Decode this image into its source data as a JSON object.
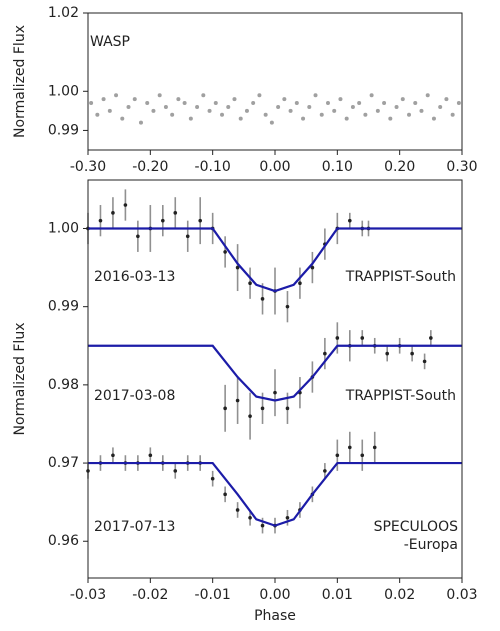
{
  "chart_data": [
    {
      "type": "scatter",
      "ylabel": "Normalized Flux",
      "annotations": [
        "WASP"
      ],
      "xlim": [
        -0.3,
        0.3
      ],
      "ylim": [
        0.985,
        1.02
      ],
      "xticks": [
        {
          "value": -0.3,
          "label": "-0.30"
        },
        {
          "value": -0.2,
          "label": "-0.20"
        },
        {
          "value": -0.1,
          "label": "-0.10"
        },
        {
          "value": 0,
          "label": "0.00"
        },
        {
          "value": 0.1,
          "label": "0.10"
        },
        {
          "value": 0.2,
          "label": "0.20"
        },
        {
          "value": 0.3,
          "label": "0.30"
        }
      ],
      "yticks": [
        0.99,
        {
          "value": 1,
          "label": "1.00"
        },
        1.02
      ],
      "series": [
        {
          "type": "markers",
          "color": "#a0a0a0",
          "x": [
            -0.295,
            -0.285,
            -0.275,
            -0.265,
            -0.255,
            -0.245,
            -0.235,
            -0.225,
            -0.215,
            -0.205,
            -0.195,
            -0.185,
            -0.175,
            -0.165,
            -0.155,
            -0.145,
            -0.135,
            -0.125,
            -0.115,
            -0.105,
            -0.095,
            -0.085,
            -0.075,
            -0.065,
            -0.055,
            -0.045,
            -0.035,
            -0.025,
            -0.015,
            -0.005,
            0.005,
            0.015,
            0.025,
            0.035,
            0.045,
            0.055,
            0.065,
            0.075,
            0.085,
            0.095,
            0.105,
            0.115,
            0.125,
            0.135,
            0.145,
            0.155,
            0.165,
            0.175,
            0.185,
            0.195,
            0.205,
            0.215,
            0.225,
            0.235,
            0.245,
            0.255,
            0.265,
            0.275,
            0.285,
            0.295
          ],
          "values": [
            0.997,
            0.994,
            0.998,
            0.995,
            0.999,
            0.993,
            0.996,
            0.998,
            0.992,
            0.997,
            0.995,
            0.999,
            0.996,
            0.994,
            0.998,
            0.997,
            0.993,
            0.996,
            0.999,
            0.995,
            0.997,
            0.994,
            0.996,
            0.998,
            0.993,
            0.995,
            0.997,
            0.999,
            0.994,
            0.992,
            0.996,
            0.998,
            0.995,
            0.997,
            0.993,
            0.996,
            0.999,
            0.994,
            0.997,
            0.995,
            0.998,
            0.993,
            0.996,
            0.997,
            0.994,
            0.999,
            0.995,
            0.997,
            0.993,
            0.996,
            0.998,
            0.994,
            0.997,
            0.995,
            0.999,
            0.993,
            0.996,
            0.998,
            0.994,
            0.997
          ]
        }
      ]
    },
    {
      "type": "scatter",
      "ylabel": "Normalized Flux",
      "xlabel": "Phase",
      "annotations": [
        "2016-03-13",
        "TRAPPIST-South",
        "2017-03-08",
        "TRAPPIST-South",
        "2017-07-13",
        "SPECULOOS",
        "-Europa"
      ],
      "xlim": [
        -0.03,
        0.03
      ],
      "ylim": [
        0.9553,
        1.0062
      ],
      "xticks": [
        -0.03,
        -0.02,
        -0.01,
        {
          "value": 0,
          "label": "0.00"
        },
        0.01,
        0.02,
        0.03
      ],
      "yticks": [
        0.96,
        0.97,
        0.98,
        0.99,
        {
          "value": 1,
          "label": "1.00"
        }
      ],
      "series": [
        {
          "type": "errorbar",
          "color": "#222222",
          "x": [
            -0.03,
            -0.028,
            -0.026,
            -0.024,
            -0.022,
            -0.02,
            -0.018,
            -0.016,
            -0.014,
            -0.012,
            -0.01,
            -0.008,
            -0.006,
            -0.004,
            -0.002,
            0,
            0.002,
            0.004,
            0.006,
            0.008,
            0.01,
            0.012,
            0.014,
            0.015
          ],
          "values": [
            1.0,
            1.001,
            1.002,
            1.003,
            0.999,
            1.0,
            1.001,
            1.002,
            0.999,
            1.001,
            1.0,
            0.997,
            0.995,
            0.993,
            0.991,
            0.992,
            0.99,
            0.993,
            0.995,
            0.998,
            1.0,
            1.001,
            1.0,
            1.0
          ],
          "errors": [
            0.002,
            0.002,
            0.002,
            0.002,
            0.002,
            0.003,
            0.002,
            0.002,
            0.002,
            0.003,
            0.002,
            0.002,
            0.003,
            0.002,
            0.002,
            0.003,
            0.002,
            0.002,
            0.002,
            0.002,
            0.002,
            0.001,
            0.001,
            0.001
          ]
        },
        {
          "type": "line",
          "color": "#1c1ca8",
          "x": [
            -0.03,
            -0.01,
            -0.006,
            -0.003,
            0,
            0.003,
            0.006,
            0.01,
            0.03
          ],
          "values": [
            1.0,
            1.0,
            0.9955,
            0.9928,
            0.992,
            0.9928,
            0.9955,
            1.0,
            1.0
          ]
        },
        {
          "type": "errorbar",
          "color": "#222222",
          "x": [
            -0.008,
            -0.006,
            -0.004,
            -0.002,
            0,
            0.002,
            0.004,
            0.006,
            0.008,
            0.01,
            0.012,
            0.014,
            0.016,
            0.018,
            0.02,
            0.022,
            0.024,
            0.025
          ],
          "values": [
            0.977,
            0.978,
            0.976,
            0.977,
            0.979,
            0.977,
            0.979,
            0.981,
            0.984,
            0.986,
            0.985,
            0.986,
            0.985,
            0.984,
            0.985,
            0.984,
            0.983,
            0.986
          ],
          "errors": [
            0.003,
            0.003,
            0.003,
            0.002,
            0.003,
            0.002,
            0.002,
            0.002,
            0.002,
            0.002,
            0.002,
            0.001,
            0.001,
            0.001,
            0.001,
            0.001,
            0.001,
            0.001
          ]
        },
        {
          "type": "line",
          "color": "#1c1ca8",
          "x": [
            -0.03,
            -0.01,
            -0.006,
            -0.003,
            0,
            0.003,
            0.006,
            0.01,
            0.03
          ],
          "values": [
            0.985,
            0.985,
            0.981,
            0.9785,
            0.978,
            0.9785,
            0.981,
            0.985,
            0.985
          ]
        },
        {
          "type": "errorbar",
          "color": "#222222",
          "x": [
            -0.03,
            -0.028,
            -0.026,
            -0.024,
            -0.022,
            -0.02,
            -0.018,
            -0.016,
            -0.014,
            -0.012,
            -0.01,
            -0.008,
            -0.006,
            -0.004,
            -0.002,
            0,
            0.002,
            0.004,
            0.006,
            0.008,
            0.01,
            0.012,
            0.014,
            0.016
          ],
          "values": [
            0.969,
            0.97,
            0.971,
            0.97,
            0.97,
            0.971,
            0.97,
            0.969,
            0.97,
            0.97,
            0.968,
            0.966,
            0.964,
            0.963,
            0.962,
            0.962,
            0.963,
            0.964,
            0.966,
            0.969,
            0.971,
            0.972,
            0.971,
            0.972
          ],
          "errors": [
            0.001,
            0.001,
            0.001,
            0.001,
            0.001,
            0.001,
            0.001,
            0.001,
            0.001,
            0.001,
            0.001,
            0.001,
            0.001,
            0.001,
            0.001,
            0.001,
            0.001,
            0.001,
            0.001,
            0.001,
            0.002,
            0.002,
            0.002,
            0.002
          ]
        },
        {
          "type": "line",
          "color": "#1c1ca8",
          "x": [
            -0.03,
            -0.01,
            -0.006,
            -0.003,
            0,
            0.003,
            0.006,
            0.01,
            0.03
          ],
          "values": [
            0.97,
            0.97,
            0.966,
            0.9628,
            0.962,
            0.9628,
            0.966,
            0.97,
            0.97
          ]
        }
      ]
    }
  ]
}
